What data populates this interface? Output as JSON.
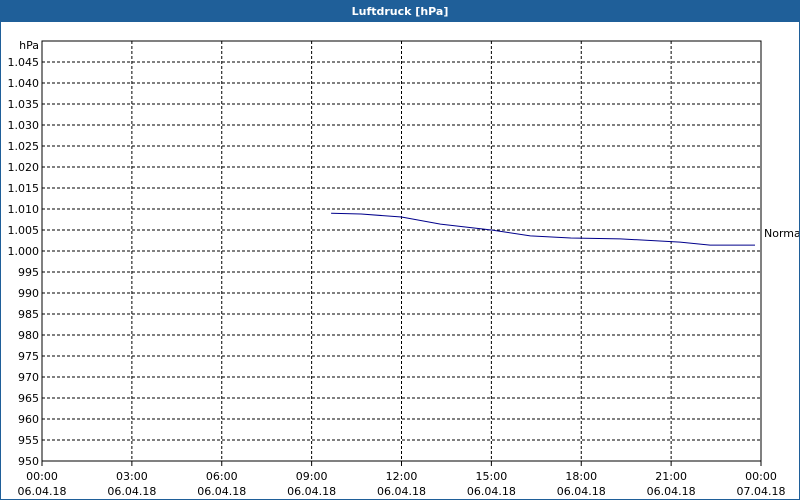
{
  "chart_data": {
    "type": "line",
    "title": "Luftdruck [hPa]",
    "y_label": "hPa",
    "x": [
      9.65,
      10.65,
      12.0,
      13.3,
      15.0,
      16.3,
      17.65,
      19.3,
      21.3,
      22.3,
      23.8
    ],
    "series": [
      {
        "name": "Normal",
        "color": "#00008b",
        "values": [
          1009.0,
          1008.8,
          1008.1,
          1006.4,
          1005.0,
          1003.6,
          1003.1,
          1002.9,
          1002.1,
          1001.4,
          1001.4
        ]
      }
    ],
    "xlim": [
      0,
      24
    ],
    "xticks": [
      {
        "value": 0,
        "label": "00:00",
        "date": "06.04.18"
      },
      {
        "value": 3,
        "label": "03:00",
        "date": "06.04.18"
      },
      {
        "value": 6,
        "label": "06:00",
        "date": "06.04.18"
      },
      {
        "value": 9,
        "label": "09:00",
        "date": "06.04.18"
      },
      {
        "value": 12,
        "label": "12:00",
        "date": "06.04.18"
      },
      {
        "value": 15,
        "label": "15:00",
        "date": "06.04.18"
      },
      {
        "value": 18,
        "label": "18:00",
        "date": "06.04.18"
      },
      {
        "value": 21,
        "label": "21:00",
        "date": "06.04.18"
      },
      {
        "value": 24,
        "label": "00:00",
        "date": "07.04.18"
      }
    ],
    "ylim": [
      950,
      1050
    ],
    "yticks": [
      950,
      955,
      960,
      965,
      970,
      975,
      980,
      985,
      990,
      995,
      {
        "value": 1000,
        "label": "1.000"
      },
      {
        "value": 1005,
        "label": "1.005"
      },
      {
        "value": 1010,
        "label": "1.010"
      },
      {
        "value": 1015,
        "label": "1.015"
      },
      {
        "value": 1020,
        "label": "1.020"
      },
      {
        "value": 1025,
        "label": "1.025"
      },
      {
        "value": 1030,
        "label": "1.030"
      },
      {
        "value": 1035,
        "label": "1.035"
      },
      {
        "value": 1040,
        "label": "1.040"
      },
      {
        "value": 1045,
        "label": "1.045"
      }
    ],
    "grid": true
  }
}
